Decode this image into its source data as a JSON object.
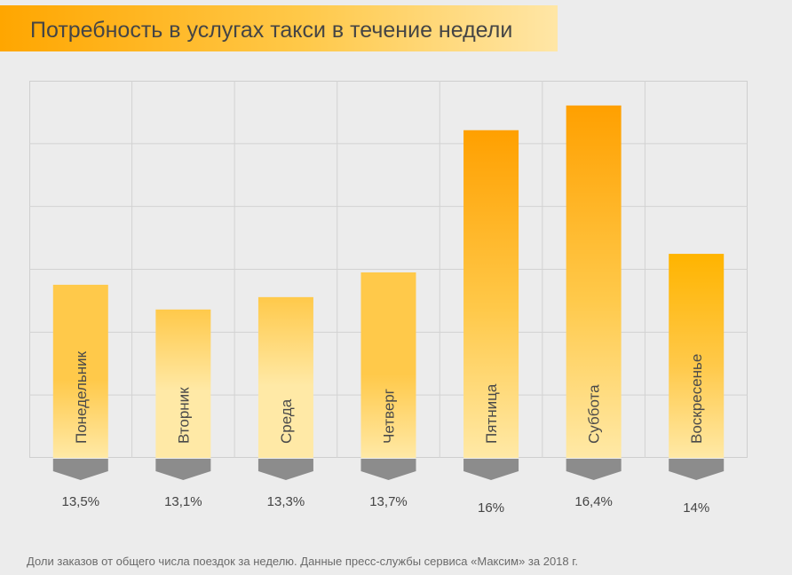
{
  "header": {
    "title": "Потребность в услугах такси в течение недели"
  },
  "footnote": "Доли заказов от общего числа поездок за неделю. Данные пресс-службы сервиса «Максим» за 2018 г.",
  "colors": {
    "bar_light": "#ffe9a6",
    "bar_mid": "#ffc94a",
    "bar_strong": "#ffa000",
    "bar_amber": "#ffb400",
    "marker": "#8c8c8c",
    "grid": "#d2d2d2"
  },
  "chart_data": {
    "type": "bar",
    "title": "Потребность в услугах такси в течение недели",
    "categories": [
      "Понедельник",
      "Вторник",
      "Среда",
      "Четверг",
      "Пятница",
      "Суббота",
      "Воскресенье"
    ],
    "values": [
      13.5,
      13.1,
      13.3,
      13.7,
      16,
      16.4,
      14
    ],
    "value_labels": [
      "13,5%",
      "13,1%",
      "13,3%",
      "13,7%",
      "16%",
      "16,4%",
      "14%"
    ],
    "ylim": [
      10.7,
      16.8
    ],
    "grid": true,
    "legend": "none"
  }
}
